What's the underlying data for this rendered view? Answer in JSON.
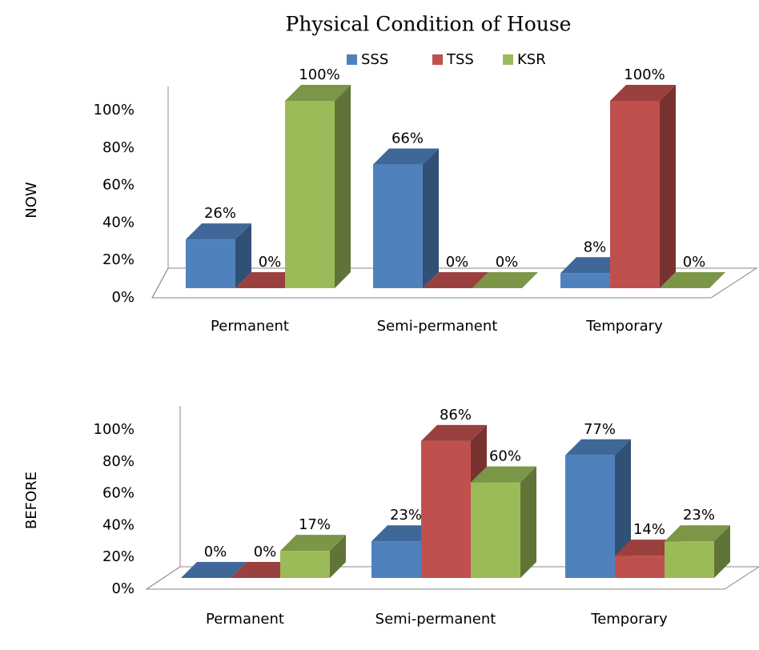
{
  "chart_data": [
    {
      "type": "bar",
      "title": "Physical Condition of House",
      "y_label": "NOW",
      "categories": [
        "Permanent",
        "Semi-permanent",
        "Temporary"
      ],
      "series": [
        {
          "name": "SSS",
          "color": "#4f81bd",
          "values": [
            26,
            66,
            8
          ],
          "value_labels": [
            "26%",
            "66%",
            "8%"
          ]
        },
        {
          "name": "TSS",
          "color": "#c0504d",
          "values": [
            0,
            0,
            100
          ],
          "value_labels": [
            "0%",
            "0%",
            "100%"
          ]
        },
        {
          "name": "KSR",
          "color": "#9bbb59",
          "values": [
            100,
            0,
            0
          ],
          "value_labels": [
            "100%",
            "0%",
            "0%"
          ]
        }
      ],
      "ylim": [
        0,
        100
      ],
      "yticks": [
        {
          "value": 0,
          "label": "0%"
        },
        {
          "value": 20,
          "label": "20%"
        },
        {
          "value": 40,
          "label": "40%"
        },
        {
          "value": 60,
          "label": "60%"
        },
        {
          "value": 80,
          "label": "80%"
        },
        {
          "value": 100,
          "label": "100%"
        }
      ]
    },
    {
      "type": "bar",
      "y_label": "BEFORE",
      "categories": [
        "Permanent",
        "Semi-permanent",
        "Temporary"
      ],
      "series": [
        {
          "color": "#4f81bd",
          "values": [
            0,
            23,
            77
          ],
          "value_labels": [
            "0%",
            "23%",
            "77%"
          ]
        },
        {
          "color": "#c0504d",
          "values": [
            0,
            86,
            14
          ],
          "value_labels": [
            "0%",
            "86%",
            "14%"
          ]
        },
        {
          "color": "#9bbb59",
          "values": [
            17,
            60,
            23
          ],
          "value_labels": [
            "17%",
            "60%",
            "23%"
          ]
        }
      ],
      "ylim": [
        0,
        100
      ],
      "yticks": [
        {
          "value": 0,
          "label": "0%"
        },
        {
          "value": 20,
          "label": "20%"
        },
        {
          "value": 40,
          "label": "40%"
        },
        {
          "value": 60,
          "label": "60%"
        },
        {
          "value": 80,
          "label": "80%"
        },
        {
          "value": 100,
          "label": "100%"
        }
      ]
    }
  ]
}
